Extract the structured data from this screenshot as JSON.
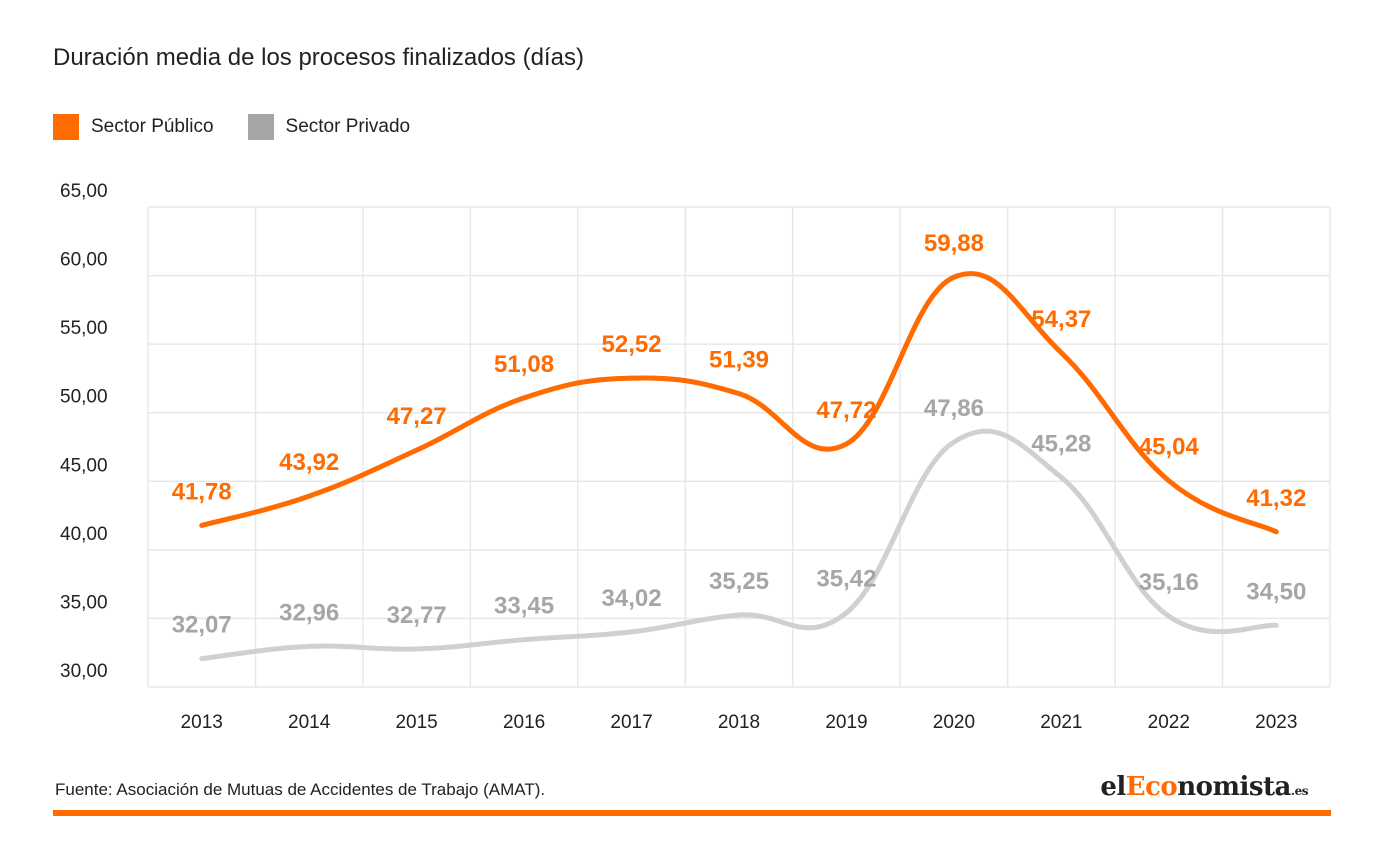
{
  "title": "Duración media de los procesos finalizados (días)",
  "legend": [
    {
      "label": "Sector Público",
      "color": "#ff6b00"
    },
    {
      "label": "Sector Privado",
      "color": "#a6a6a6"
    }
  ],
  "source": "Fuente: Asociación de Mutuas de Accidentes de Trabajo (AMAT).",
  "logo": {
    "prefix": "el",
    "accent": "Eco",
    "rest": "nomista",
    "tld": ".es"
  },
  "chart_data": {
    "type": "line",
    "title": "Duración media de los procesos finalizados (días)",
    "categories": [
      "2013",
      "2014",
      "2015",
      "2016",
      "2017",
      "2018",
      "2019",
      "2020",
      "2021",
      "2022",
      "2023"
    ],
    "series": [
      {
        "name": "Sector Público",
        "color": "#ff6b00",
        "label_color": "#ff6b00",
        "values": [
          41.78,
          43.92,
          47.27,
          51.08,
          52.52,
          51.39,
          47.72,
          59.88,
          54.37,
          45.04,
          41.32
        ],
        "labels": [
          "41,78",
          "43,92",
          "47,27",
          "51,08",
          "52,52",
          "51,39",
          "47,72",
          "59,88",
          "54,37",
          "45,04",
          "41,32"
        ]
      },
      {
        "name": "Sector Privado",
        "color": "#d0d0d0",
        "label_color": "#a6a6a6",
        "values": [
          32.07,
          32.96,
          32.77,
          33.45,
          34.02,
          35.25,
          35.42,
          47.86,
          45.28,
          35.16,
          34.5
        ],
        "labels": [
          "32,07",
          "32,96",
          "32,77",
          "33,45",
          "34,02",
          "35,25",
          "35,42",
          "47,86",
          "45,28",
          "35,16",
          "34,50"
        ]
      }
    ],
    "y_ticks": [
      "30,00",
      "35,00",
      "40,00",
      "45,00",
      "50,00",
      "55,00",
      "60,00",
      "65,00"
    ],
    "ylim": [
      30,
      65
    ],
    "grid": true,
    "legend_position": "top-left"
  }
}
